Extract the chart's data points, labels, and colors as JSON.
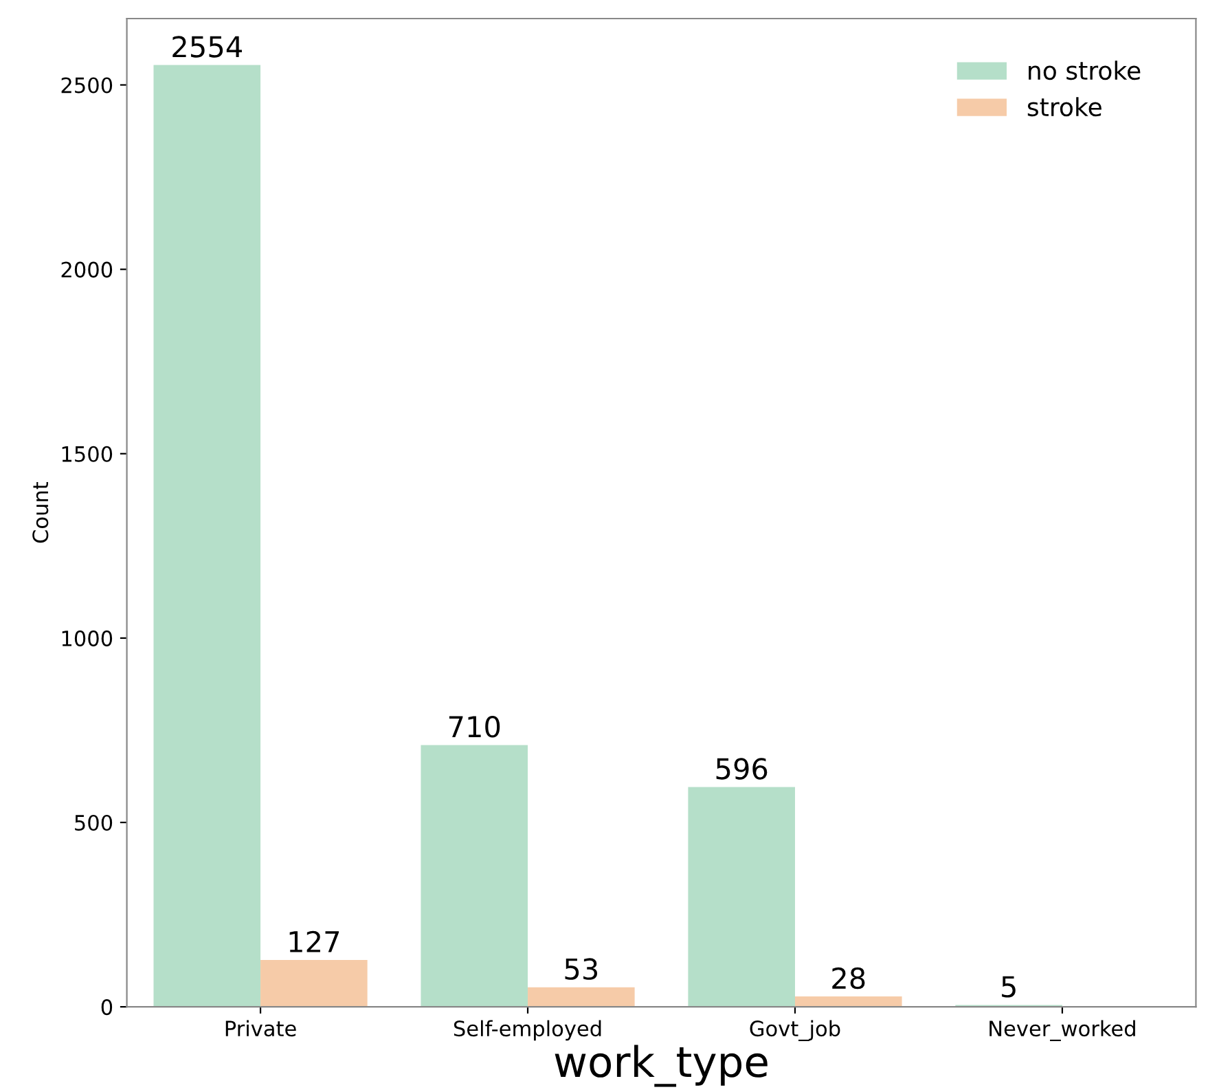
{
  "chart_data": {
    "type": "bar",
    "xlabel": "work_type",
    "ylabel": "Count",
    "categories": [
      "Private",
      "Self-employed",
      "Govt_job",
      "Never_worked"
    ],
    "series": [
      {
        "name": "no stroke",
        "color": "#b5dfc9",
        "values": [
          2554,
          710,
          596,
          5
        ],
        "value_labels": [
          "2554",
          "710",
          "596",
          "5"
        ]
      },
      {
        "name": "stroke",
        "color": "#f6cba8",
        "values": [
          127,
          53,
          28,
          0
        ],
        "value_labels": [
          "127",
          "53",
          "28",
          null
        ]
      }
    ],
    "ylim": [
      0,
      2680
    ],
    "yticks": [
      0,
      500,
      1000,
      1500,
      2000,
      2500
    ],
    "grid": false,
    "legend": "top right"
  }
}
